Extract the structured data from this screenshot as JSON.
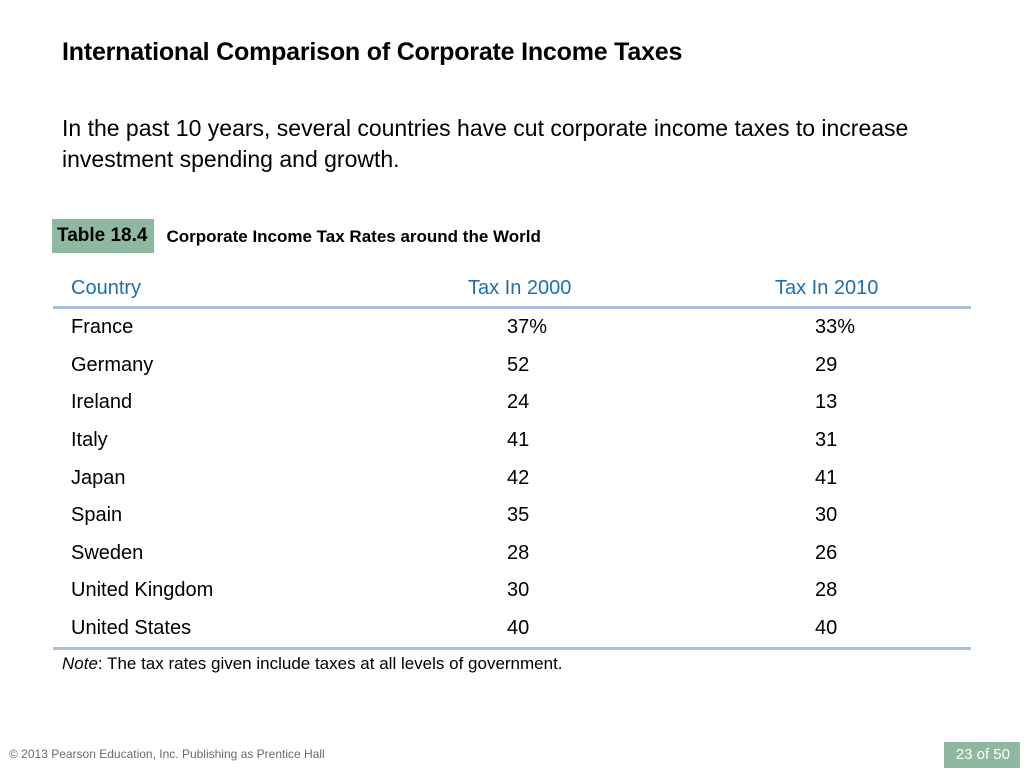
{
  "slide": {
    "title": "International Comparison of Corporate Income Taxes",
    "intro": "In the past 10 years, several countries have cut corporate income taxes to increase investment spending and growth."
  },
  "table": {
    "label": "Table 18.4",
    "caption": "Corporate Income Tax Rates around the World",
    "columns": [
      "Country",
      "Tax In 2000",
      "Tax In 2010"
    ],
    "rows": [
      [
        "France",
        "37%",
        "33%"
      ],
      [
        "Germany",
        "52",
        "29"
      ],
      [
        "Ireland",
        "24",
        "13"
      ],
      [
        "Italy",
        "41",
        "31"
      ],
      [
        "Japan",
        "42",
        "41"
      ],
      [
        "Spain",
        "35",
        "30"
      ],
      [
        "Sweden",
        "28",
        "26"
      ],
      [
        "United Kingdom",
        "30",
        "28"
      ],
      [
        "United States",
        "40",
        "40"
      ]
    ],
    "note_label": "Note",
    "note_text": ": The tax rates given include taxes at all levels of government."
  },
  "footer": {
    "copyright": "© 2013 Pearson Education, Inc. Publishing as Prentice Hall",
    "page": "23 of 50"
  },
  "colors": {
    "accent_green": "#8fb8a0",
    "header_blue": "#1e6fb0",
    "rule_blue": "#a9c0dc"
  },
  "chart_data": {
    "type": "table",
    "columns": [
      "Country",
      "Tax In 2000",
      "Tax In 2010"
    ],
    "rows": [
      [
        "France",
        "37%",
        "33%"
      ],
      [
        "Germany",
        "52",
        "29"
      ],
      [
        "Ireland",
        "24",
        "13"
      ],
      [
        "Italy",
        "41",
        "31"
      ],
      [
        "Japan",
        "42",
        "41"
      ],
      [
        "Spain",
        "35",
        "30"
      ],
      [
        "Sweden",
        "28",
        "26"
      ],
      [
        "United Kingdom",
        "30",
        "28"
      ],
      [
        "United States",
        "40",
        "40"
      ]
    ]
  }
}
